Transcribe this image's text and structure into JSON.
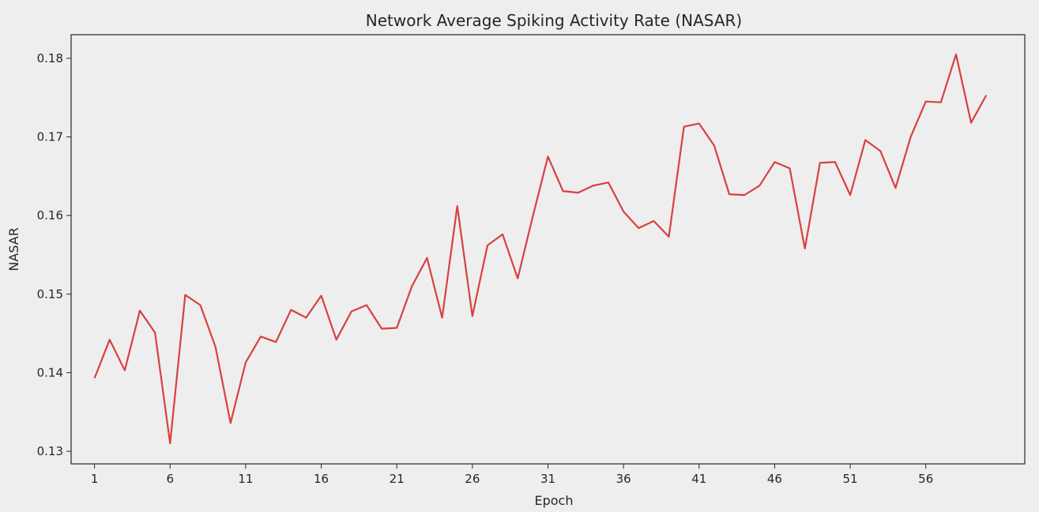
{
  "chart_data": {
    "type": "line",
    "title": "Network Average Spiking Activity Rate (NASAR)",
    "xlabel": "Epoch",
    "ylabel": "NASAR",
    "x_ticks": [
      1,
      6,
      11,
      16,
      21,
      26,
      31,
      36,
      41,
      46,
      51,
      56
    ],
    "y_ticks": [
      0.13,
      0.14,
      0.15,
      0.16,
      0.17,
      0.18
    ],
    "xlim": [
      -0.55,
      62.55
    ],
    "ylim": [
      0.1284,
      0.183
    ],
    "grid": false,
    "line_color": "#d94040",
    "background_color": "#eeeeee",
    "series": [
      {
        "x": [
          1,
          2,
          3,
          4,
          5,
          6,
          7,
          8,
          9,
          10,
          11,
          12,
          13,
          14,
          15,
          16,
          17,
          18,
          19,
          20,
          21,
          22,
          23,
          24,
          25,
          26,
          27,
          28,
          29,
          30,
          31,
          32,
          33,
          34,
          35,
          36,
          37,
          38,
          39,
          40,
          41,
          42,
          43,
          44,
          45,
          46,
          47,
          48,
          49,
          50,
          51,
          52,
          53,
          54,
          55,
          56,
          57,
          58,
          59,
          60
        ],
        "values": [
          0.1393,
          0.1442,
          0.1403,
          0.1479,
          0.1451,
          0.131,
          0.1499,
          0.1486,
          0.1433,
          0.1336,
          0.1413,
          0.1446,
          0.1439,
          0.148,
          0.147,
          0.1498,
          0.1442,
          0.1478,
          0.1486,
          0.1456,
          0.1457,
          0.151,
          0.1546,
          0.147,
          0.1612,
          0.1472,
          0.1562,
          0.1576,
          0.152,
          0.1599,
          0.1675,
          0.1631,
          0.1629,
          0.1638,
          0.1642,
          0.1605,
          0.1584,
          0.1593,
          0.1573,
          0.1713,
          0.1717,
          0.1689,
          0.1627,
          0.1626,
          0.1638,
          0.1668,
          0.166,
          0.1558,
          0.1667,
          0.1668,
          0.1626,
          0.1696,
          0.1682,
          0.1635,
          0.17,
          0.1745,
          0.1744,
          0.1805,
          0.1718,
          0.1753
        ]
      }
    ]
  }
}
